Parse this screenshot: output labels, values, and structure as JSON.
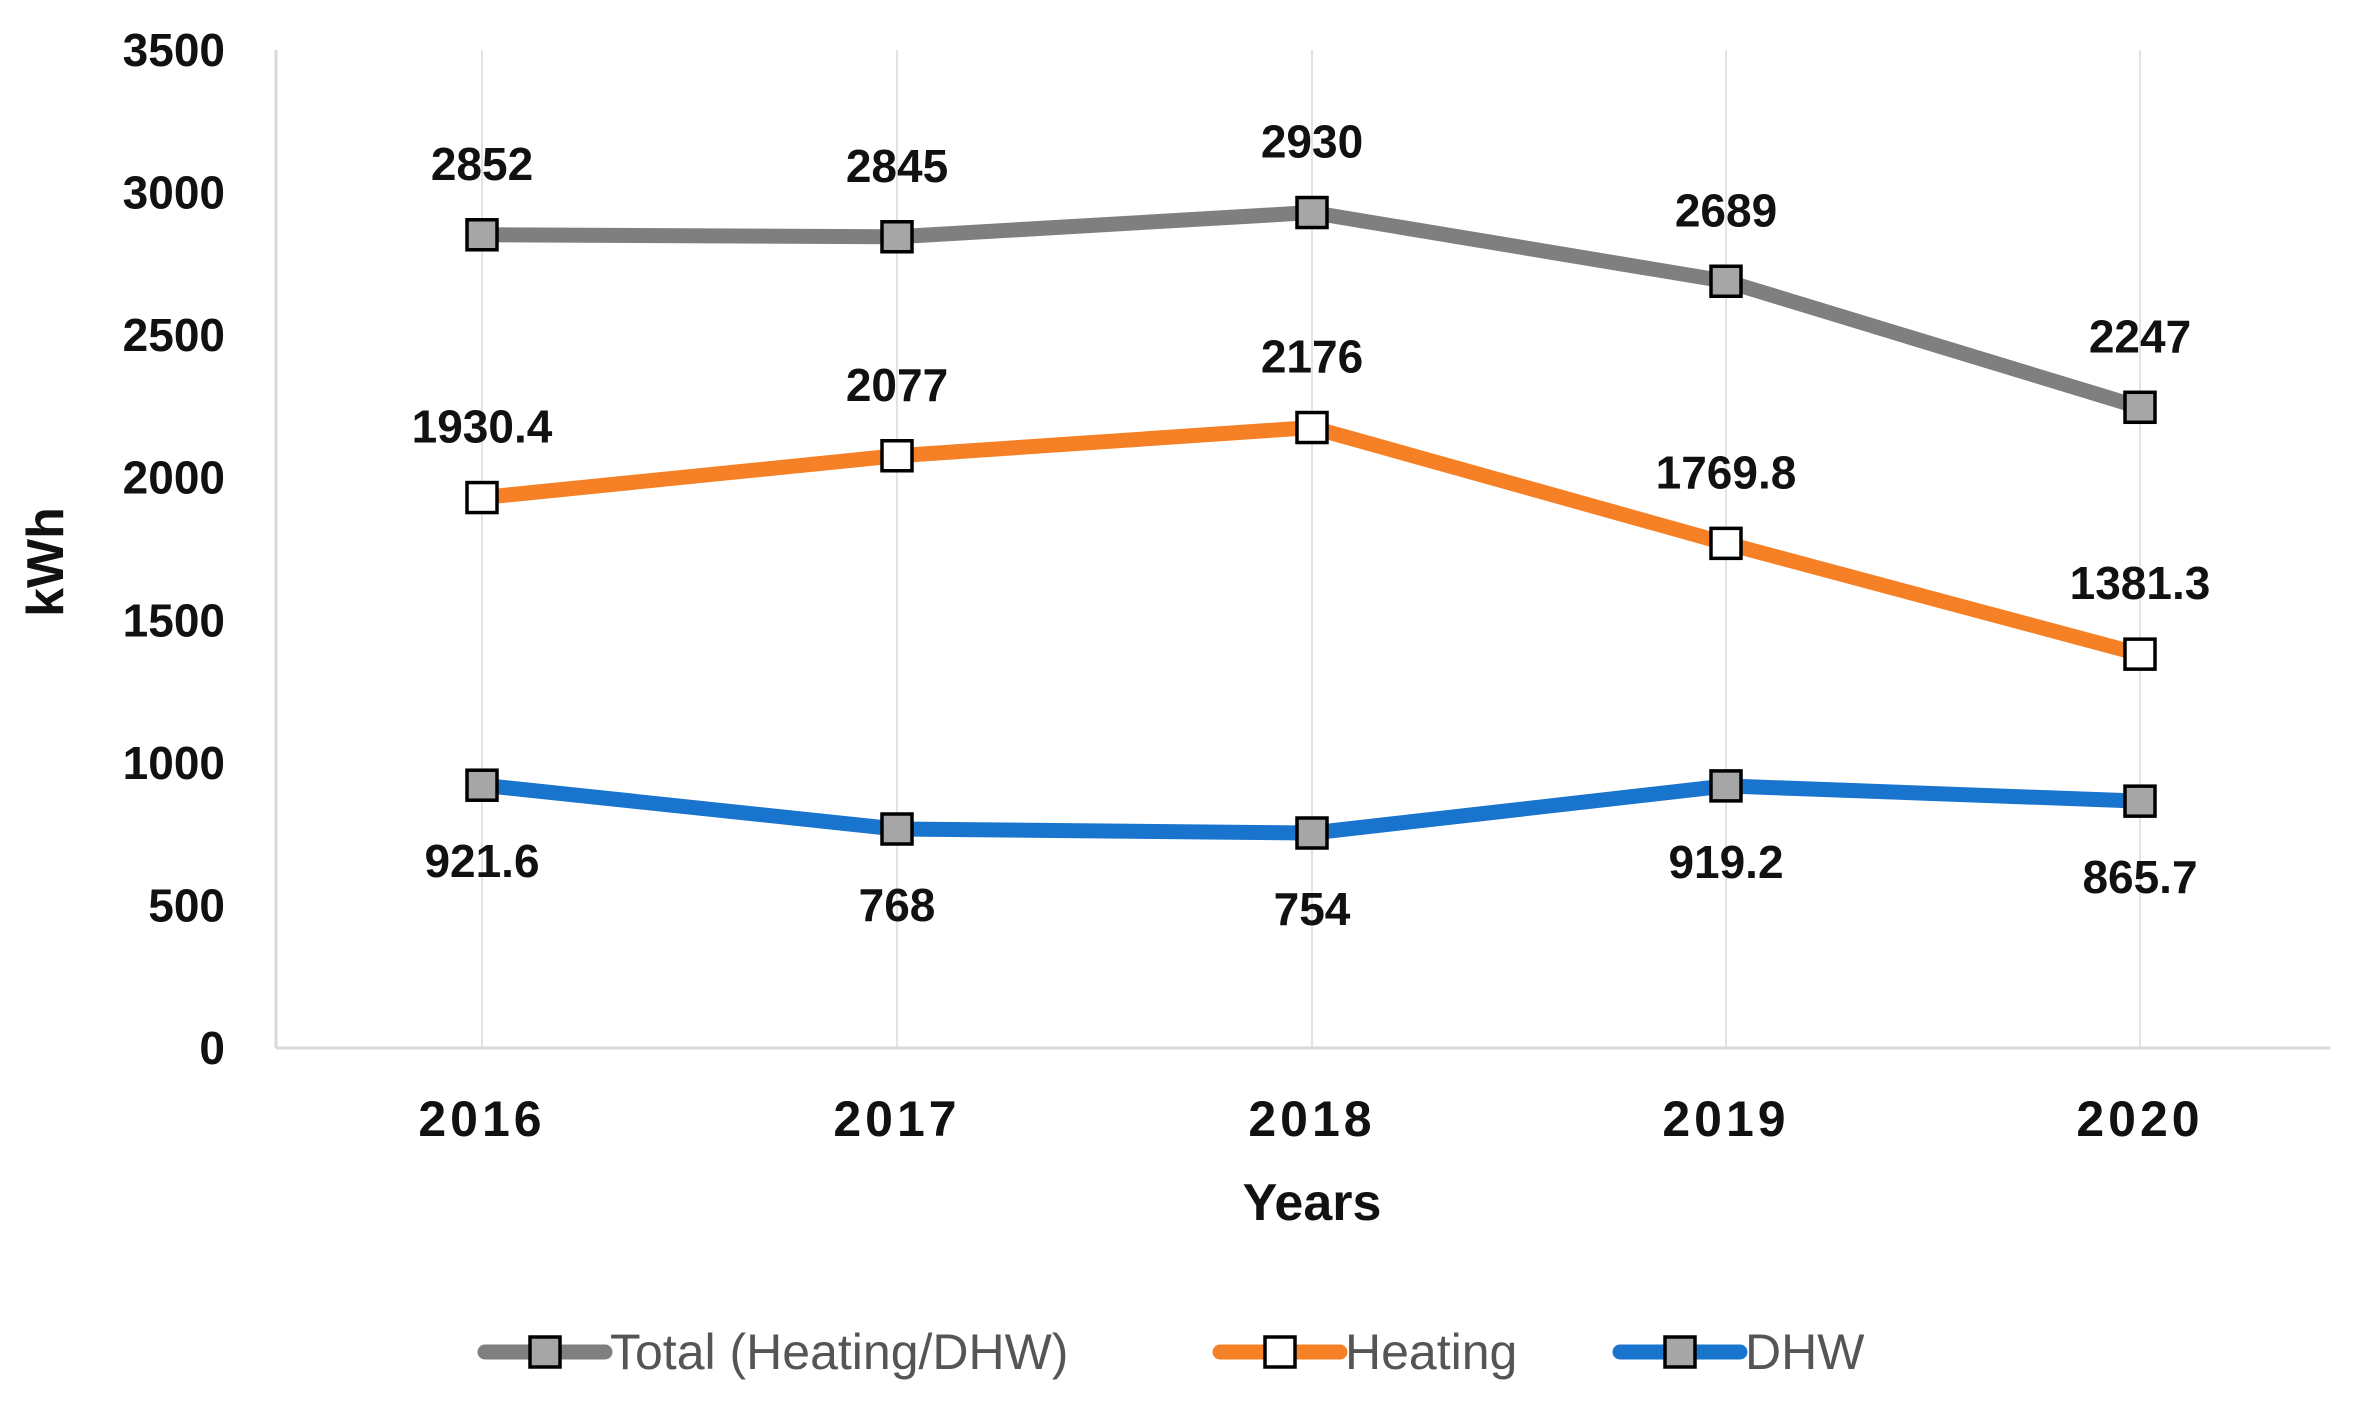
{
  "chart_data": {
    "type": "line",
    "title": "",
    "xlabel": "Years",
    "ylabel": "kWh",
    "categories": [
      "2016",
      "2017",
      "2018",
      "2019",
      "2020"
    ],
    "ylim": [
      0,
      3500
    ],
    "yticks": [
      "0",
      "500",
      "1000",
      "1500",
      "2000",
      "2500",
      "3000",
      "3500"
    ],
    "grid": "vertical",
    "legend_position": "bottom",
    "series": [
      {
        "name": "Total (Heating/DHW)",
        "values": [
          2852,
          2845,
          2930,
          2689,
          2247
        ],
        "labels": [
          "2852",
          "2845",
          "2930",
          "2689",
          "2247"
        ],
        "label_position": "above",
        "color": "#7f7f7f",
        "marker_fill": "#a6a6a6"
      },
      {
        "name": "Heating",
        "values": [
          1930.4,
          2077,
          2176,
          1769.8,
          1381.3
        ],
        "labels": [
          "1930.4",
          "2077",
          "2176",
          "1769.8",
          "1381.3"
        ],
        "label_position": "above",
        "color": "#f58025",
        "marker_fill": "#ffffff"
      },
      {
        "name": "DHW",
        "values": [
          921.6,
          768,
          754,
          919.2,
          865.7
        ],
        "labels": [
          "921.6",
          "768",
          "754",
          "919.2",
          "865.7"
        ],
        "label_position": "below",
        "color": "#1874cd",
        "marker_fill": "#a6a6a6"
      }
    ]
  }
}
